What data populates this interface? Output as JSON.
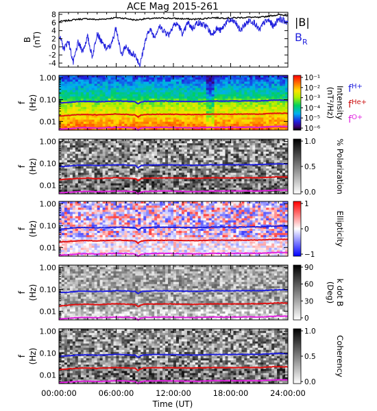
{
  "chart_data": {
    "title": "ACE Mag 2015-261",
    "xlabel": "Time (UT)",
    "x_tick_labels": [
      "00:00:00",
      "06:00:00",
      "12:00:00",
      "18:00:00",
      "24:00:00"
    ],
    "xlim_hours": [
      0,
      24
    ],
    "panels": [
      {
        "type": "line",
        "id": "field",
        "ylabel": "B",
        "yunit": "(nT)",
        "ylim": [
          -5,
          8.5
        ],
        "yticks": [
          8,
          6,
          4,
          2,
          0,
          -2,
          -4
        ],
        "series": [
          {
            "name": "|B|",
            "color": "#000000",
            "x_hours": [
              0,
              1,
              2,
              3,
              4,
              5,
              6,
              7,
              8,
              9,
              10,
              11,
              12,
              13,
              14,
              15,
              16,
              17,
              18,
              19,
              20,
              21,
              22,
              23,
              24
            ],
            "values": [
              6.2,
              6.5,
              6.8,
              6.9,
              6.7,
              6.9,
              7.2,
              7.0,
              6.6,
              6.9,
              7.0,
              7.1,
              7.0,
              6.9,
              6.8,
              6.9,
              7.2,
              7.1,
              7.1,
              7.2,
              7.3,
              7.2,
              7.6,
              7.9,
              7.7
            ]
          },
          {
            "name": "B",
            "subscript": "R",
            "color": "#1f1fdd",
            "x_hours": [
              0,
              0.5,
              1,
              1.5,
              2,
              2.5,
              3,
              3.5,
              4,
              4.5,
              5,
              5.5,
              6,
              6.5,
              7,
              7.5,
              8,
              8.5,
              9,
              9.5,
              10,
              10.5,
              11,
              11.5,
              12,
              12.5,
              13,
              13.5,
              14,
              14.5,
              15,
              15.5,
              16,
              16.5,
              17,
              17.5,
              18,
              18.5,
              19,
              19.5,
              20,
              20.5,
              21,
              21.5,
              22,
              22.5,
              23,
              23.5,
              24
            ],
            "values": [
              3.0,
              -0.5,
              1.5,
              -4.0,
              1.0,
              -1.0,
              2.5,
              -2.5,
              3.5,
              1.0,
              -0.5,
              0.5,
              5.0,
              -2.0,
              0.0,
              -1.5,
              -2.0,
              -4.5,
              1.0,
              4.5,
              2.5,
              5.0,
              4.0,
              3.0,
              5.5,
              5.5,
              3.0,
              6.0,
              4.5,
              6.0,
              5.5,
              5.0,
              3.0,
              4.5,
              4.0,
              6.0,
              6.5,
              6.0,
              4.0,
              5.5,
              6.5,
              6.0,
              4.0,
              6.0,
              6.5,
              5.0,
              7.0,
              6.5,
              6.0
            ]
          }
        ]
      },
      {
        "type": "heatmap",
        "id": "intensity",
        "ylabel": "f",
        "yunit": "(Hz)",
        "ylog": true,
        "ylim": [
          0.004,
          1.3
        ],
        "yticks": [
          "1.00",
          "0.10",
          "0.01"
        ],
        "colorscale": "rainbow",
        "cbar_label": "Intensity",
        "cbar_unit": "(nT²/Hz)",
        "cbar_ticks": [
          "10⁻¹",
          "10⁻²",
          "10⁻³",
          "10⁻⁴",
          "10⁻⁵",
          "10⁻⁶"
        ],
        "legend": [
          "f",
          "H+",
          "f",
          "He+",
          "f",
          "O+"
        ]
      },
      {
        "type": "heatmap",
        "id": "polarization",
        "ylabel": "f",
        "yunit": "(Hz)",
        "ylog": true,
        "ylim": [
          0.004,
          1.3
        ],
        "yticks": [
          "1.00",
          "0.10",
          "0.01"
        ],
        "colorscale": "gray",
        "cbar_label": "% Polarization",
        "cbar_ticks": [
          "1.0",
          "0.5",
          "0.0"
        ]
      },
      {
        "type": "heatmap",
        "id": "ellipticity",
        "ylabel": "f",
        "yunit": "(Hz)",
        "ylog": true,
        "ylim": [
          0.004,
          1.3
        ],
        "yticks": [
          "1.00",
          "0.10",
          "0.01"
        ],
        "colorscale": "bluewhitered",
        "cbar_label": "Ellipticity",
        "cbar_ticks": [
          "1",
          "0",
          "−1"
        ]
      },
      {
        "type": "heatmap",
        "id": "kdotb",
        "ylabel": "f",
        "yunit": "(Hz)",
        "ylog": true,
        "ylim": [
          0.004,
          1.3
        ],
        "yticks": [
          "1.00",
          "0.10",
          "0.01"
        ],
        "colorscale": "gray_inverted",
        "cbar_label": "k dot B",
        "cbar_unit": "(Deg)",
        "cbar_ticks": [
          "90",
          "60",
          "30",
          "0"
        ]
      },
      {
        "type": "heatmap",
        "id": "coherency",
        "ylabel": "f",
        "yunit": "(Hz)",
        "ylog": true,
        "ylim": [
          0.004,
          1.3
        ],
        "yticks": [
          "1.00",
          "0.10",
          "0.01"
        ],
        "colorscale": "gray",
        "cbar_label": "Coherency",
        "cbar_ticks": [
          "1.0",
          "0.5",
          "0.0"
        ]
      }
    ],
    "gyrofrequency_lines": {
      "x_hours": [
        0,
        1,
        2,
        3,
        4,
        5,
        6,
        7,
        8,
        8.3,
        8.6,
        9,
        10,
        11,
        12,
        13,
        14,
        15,
        16,
        17,
        18,
        19,
        20,
        21,
        22,
        23,
        24
      ],
      "fH": [
        0.07,
        0.075,
        0.082,
        0.083,
        0.08,
        0.083,
        0.087,
        0.085,
        0.08,
        0.063,
        0.078,
        0.083,
        0.085,
        0.086,
        0.085,
        0.083,
        0.082,
        0.083,
        0.087,
        0.086,
        0.086,
        0.087,
        0.088,
        0.087,
        0.092,
        0.096,
        0.094
      ],
      "fHe": [
        0.0175,
        0.019,
        0.0205,
        0.021,
        0.02,
        0.021,
        0.022,
        0.021,
        0.02,
        0.016,
        0.0195,
        0.021,
        0.0213,
        0.0215,
        0.0213,
        0.021,
        0.0205,
        0.021,
        0.0218,
        0.0215,
        0.0215,
        0.0218,
        0.022,
        0.0218,
        0.023,
        0.024,
        0.0235
      ],
      "fO": [
        0.0044,
        0.0047,
        0.0051,
        0.0052,
        0.005,
        0.0052,
        0.0054,
        0.0053,
        0.005,
        0.004,
        0.0049,
        0.0052,
        0.0053,
        0.0054,
        0.0053,
        0.0052,
        0.0051,
        0.0052,
        0.0054,
        0.0054,
        0.0054,
        0.0054,
        0.0055,
        0.0054,
        0.0057,
        0.006,
        0.0059
      ],
      "colors": {
        "fH": "#1f1fdd",
        "fHe": "#e01010",
        "fO": "#e020e0"
      }
    },
    "legend_colors": {
      "bmag": "#000000",
      "br": "#1f1fdd",
      "fH": "#1f1fdd",
      "fHe": "#cc1010",
      "fO": "#e020e0"
    }
  }
}
